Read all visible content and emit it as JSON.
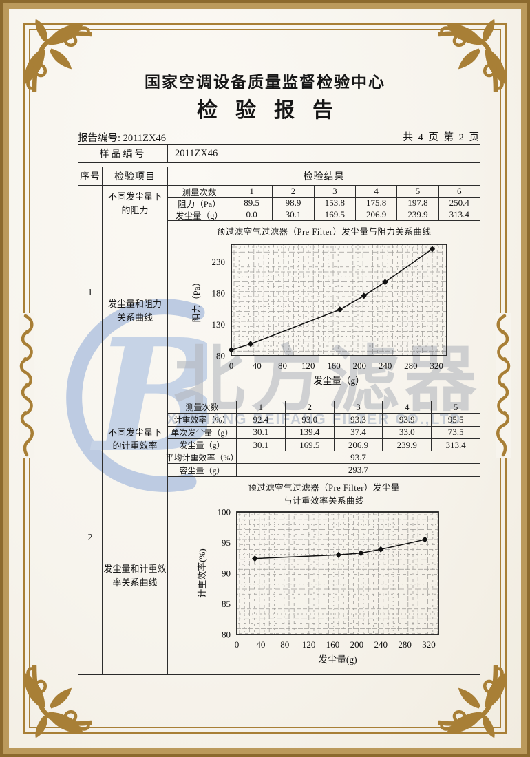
{
  "page": {
    "center_name": "国家空调设备质量监督检验中心",
    "report_title": "检验报告",
    "report_no_label": "报告编号:",
    "report_no": "2011ZX46",
    "page_info": "共 4 页 第 2 页"
  },
  "sample": {
    "label": "样品编号",
    "value": "2011ZX46"
  },
  "table": {
    "header": {
      "seq": "序号",
      "item": "检验项目",
      "result": "检验结果"
    },
    "sections": [
      {
        "seq": "1",
        "item_top": "不同发尘量下\n的阻力",
        "item_bottom": "发尘量和阻力\n关系曲线",
        "subtable": {
          "rows": [
            {
              "label": "测量次数",
              "values": [
                "1",
                "2",
                "3",
                "4",
                "5",
                "6"
              ]
            },
            {
              "label": "阻力（Pa）",
              "values": [
                "89.5",
                "98.9",
                "153.8",
                "175.8",
                "197.8",
                "250.4"
              ]
            },
            {
              "label": "发尘量（g）",
              "values": [
                "0.0",
                "30.1",
                "169.5",
                "206.9",
                "239.9",
                "313.4"
              ]
            }
          ]
        }
      },
      {
        "seq": "2",
        "item_top": "不同发尘量下\n的计重效率",
        "item_bottom": "发尘量和计重效\n率关系曲线",
        "subtable": {
          "rows": [
            {
              "label": "测量次数",
              "values": [
                "1",
                "2",
                "3",
                "4",
                "5"
              ]
            },
            {
              "label": "计重效率（%）",
              "values": [
                "92.4",
                "93.0",
                "93.3",
                "93.9",
                "95.5"
              ]
            },
            {
              "label": "单次发尘量（g）",
              "values": [
                "30.1",
                "139.4",
                "37.4",
                "33.0",
                "73.5"
              ]
            },
            {
              "label": "发尘量（g）",
              "values": [
                "30.1",
                "169.5",
                "206.9",
                "239.9",
                "313.4"
              ]
            },
            {
              "label": "平均计重效率（%）",
              "merged": "93.7"
            },
            {
              "label": "容尘量（g）",
              "merged": "293.7"
            }
          ]
        }
      }
    ]
  },
  "chart_data": [
    {
      "type": "line",
      "title": "预过滤空气过滤器（Pre Filter）发尘量与阻力关系曲线",
      "xlabel": "发尘量（g）",
      "ylabel": "阻力（Pa）",
      "x": [
        0,
        30.1,
        169.5,
        206.9,
        239.9,
        313.4
      ],
      "y": [
        89.5,
        98.9,
        153.8,
        175.8,
        197.8,
        250.4
      ],
      "xlim": [
        0,
        336
      ],
      "ylim": [
        80,
        258
      ],
      "xticks": [
        0,
        40,
        80,
        120,
        160,
        200,
        240,
        280,
        320
      ],
      "yticks": [
        80,
        130,
        180,
        230
      ],
      "grid": "fine-crosshatch",
      "legend": "none",
      "marker": "diamond"
    },
    {
      "type": "line",
      "title": "预过滤空气过滤器（Pre Filter）发尘量\n与计重效率关系曲线",
      "xlabel": "发尘量(g)",
      "ylabel": "计重效率(%)",
      "x": [
        30.1,
        169.5,
        206.9,
        239.9,
        313.4
      ],
      "y": [
        92.4,
        93.0,
        93.3,
        93.9,
        95.5
      ],
      "xlim": [
        0,
        336
      ],
      "ylim": [
        80,
        100
      ],
      "xticks": [
        0,
        40,
        80,
        120,
        160,
        200,
        240,
        280,
        320
      ],
      "yticks": [
        80,
        85,
        90,
        95,
        100
      ],
      "grid": "fine-crosshatch",
      "legend": "none",
      "marker": "diamond"
    }
  ],
  "watermark": {
    "cn": "北方滤器",
    "en": "XINXIANG BEIFANG FILTER CO.,LTD"
  },
  "colors": {
    "frame_gold": "#a87f36",
    "band_gold": "#ab8750",
    "logo_blue": "#bdcbe2",
    "watermark_gray": "#b4b8bf",
    "ink": "#161616"
  }
}
